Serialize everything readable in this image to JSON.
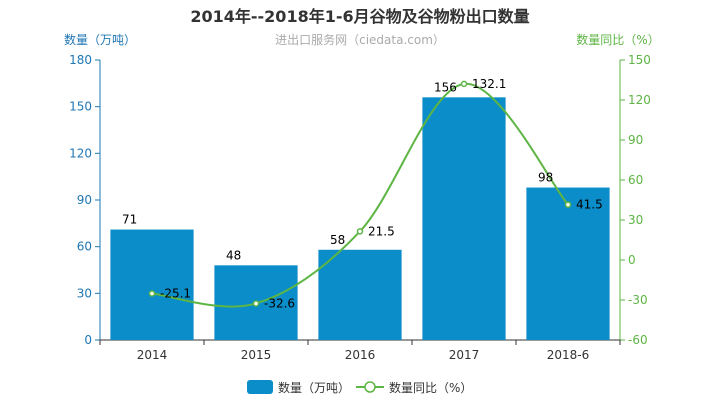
{
  "chart_data": {
    "type": "bar",
    "title": "2014年--2018年1-6月谷物及谷物粉出口数量",
    "subtitle": "进出口服务网（ciedata.com）",
    "categories": [
      "2014",
      "2015",
      "2016",
      "2017",
      "2018-6"
    ],
    "series": [
      {
        "name": "数量（万吨）",
        "type": "bar",
        "axis": "left",
        "values": [
          71,
          48,
          58,
          156,
          98
        ],
        "color": "#0a8dc9"
      },
      {
        "name": "数量同比（%）",
        "type": "line",
        "smooth": true,
        "axis": "right",
        "values": [
          -25.1,
          -32.6,
          21.5,
          132.1,
          41.5
        ],
        "color": "#5db544"
      }
    ],
    "data_labels": {
      "bar": [
        "71",
        "48",
        "58",
        "156",
        "98"
      ],
      "line": [
        "-25.1",
        "-32.6",
        "21.5",
        "132.1",
        "41.5"
      ]
    },
    "ylabel": "数量（万吨）",
    "ylim": [
      0,
      180
    ],
    "yticks": [
      "0",
      "30",
      "60",
      "90",
      "120",
      "150",
      "180"
    ],
    "y2label": "数量同比（%）",
    "y2lim": [
      -60,
      150
    ],
    "y2ticks": [
      "-60",
      "-30",
      "0",
      "30",
      "60",
      "90",
      "120",
      "150"
    ],
    "left_axis_color": "#1f77b4",
    "right_axis_color": "#5db544",
    "grid": false,
    "legend": {
      "position": "bottom-center",
      "items": [
        {
          "label": "数量（万吨）",
          "icon": "bar-swatch-icon"
        },
        {
          "label": "数量同比（%）",
          "icon": "line-marker-icon"
        }
      ]
    }
  }
}
